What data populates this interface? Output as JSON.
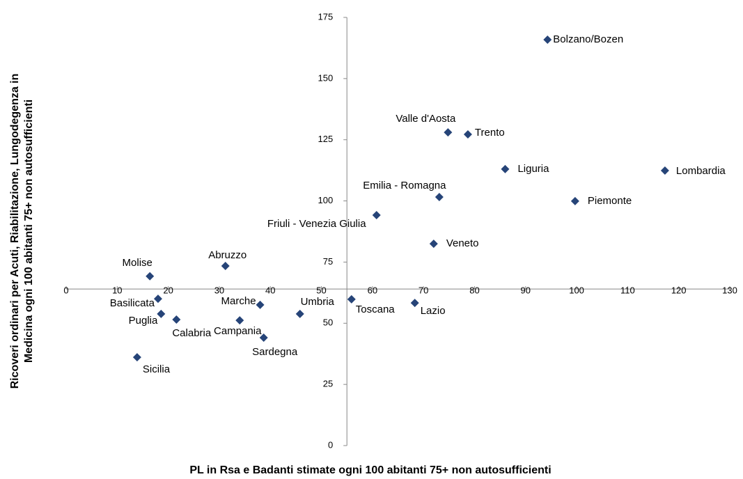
{
  "chart_data": {
    "type": "scatter",
    "xlabel": "PL in Rsa e Badanti stimate ogni 100 abitanti 75+ non autosufficienti",
    "ylabel": [
      "Ricoveri ordinari per Acuti, Riabilitazione, Lungodegenza in",
      "Medicina ogni 100 abitanti 75+ non autosufficienti"
    ],
    "point_labels": [
      "Bolzano/Bozen",
      "Valle d'Aosta",
      "Trento",
      "Liguria",
      "Lombardia",
      "Emilia - Romagna",
      "Piemonte",
      "Friuli - Venezia Giulia",
      "Veneto",
      "Abruzzo",
      "Molise",
      "Basilicata",
      "Marche",
      "Umbria",
      "Toscana",
      "Lazio",
      "Puglia",
      "Calabria",
      "Campania",
      "Sardegna",
      "Sicilia"
    ],
    "x": [
      94.3,
      74.8,
      78.7,
      86,
      117.3,
      73.1,
      99.7,
      60.8,
      72,
      31.2,
      16.4,
      18,
      38,
      45.8,
      55.9,
      68.3,
      18.6,
      21.6,
      34,
      38.7,
      13.9
    ],
    "values": [
      165.9,
      128,
      127.2,
      113,
      112.4,
      101.6,
      99.9,
      94.2,
      82.5,
      73.4,
      69.2,
      60,
      57.5,
      53.8,
      59.8,
      58.3,
      53.8,
      51.5,
      51.2,
      44.1,
      36.1
    ],
    "color": "#264478",
    "xlim": [
      0,
      130
    ],
    "xticks": [
      0,
      10,
      20,
      30,
      40,
      50,
      60,
      70,
      80,
      90,
      100,
      110,
      120,
      130
    ],
    "ylim": [
      0,
      175
    ],
    "yticks": [
      0,
      25,
      50,
      75,
      100,
      125,
      150,
      175
    ],
    "x_axis_at": 64,
    "y_axis_at": 55
  }
}
